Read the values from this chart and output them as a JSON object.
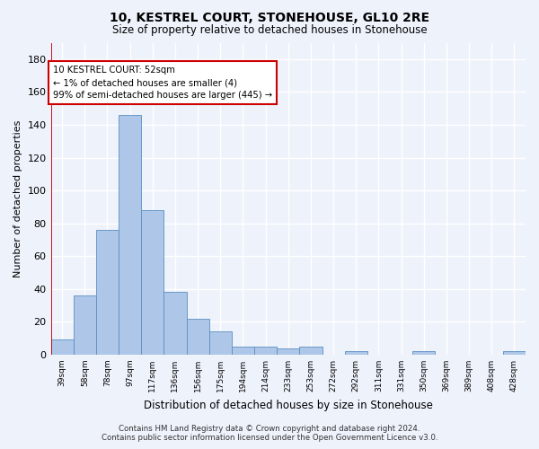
{
  "title": "10, KESTREL COURT, STONEHOUSE, GL10 2RE",
  "subtitle": "Size of property relative to detached houses in Stonehouse",
  "xlabel": "Distribution of detached houses by size in Stonehouse",
  "ylabel": "Number of detached properties",
  "bar_color": "#aec6e8",
  "bar_edge_color": "#5a8fc2",
  "categories": [
    "39sqm",
    "58sqm",
    "78sqm",
    "97sqm",
    "117sqm",
    "136sqm",
    "156sqm",
    "175sqm",
    "194sqm",
    "214sqm",
    "233sqm",
    "253sqm",
    "272sqm",
    "292sqm",
    "311sqm",
    "331sqm",
    "350sqm",
    "369sqm",
    "389sqm",
    "408sqm",
    "428sqm"
  ],
  "values": [
    9,
    36,
    76,
    146,
    88,
    38,
    22,
    14,
    5,
    5,
    4,
    5,
    0,
    2,
    0,
    0,
    2,
    0,
    0,
    0,
    2
  ],
  "ylim": [
    0,
    190
  ],
  "yticks": [
    0,
    20,
    40,
    60,
    80,
    100,
    120,
    140,
    160,
    180
  ],
  "annotation_text_line1": "10 KESTREL COURT: 52sqm",
  "annotation_text_line2": "← 1% of detached houses are smaller (4)",
  "annotation_text_line3": "99% of semi-detached houses are larger (445) →",
  "marker_color": "#cc0000",
  "footer_line1": "Contains HM Land Registry data © Crown copyright and database right 2024.",
  "footer_line2": "Contains public sector information licensed under the Open Government Licence v3.0.",
  "background_color": "#eef2fb",
  "grid_color": "#ffffff"
}
